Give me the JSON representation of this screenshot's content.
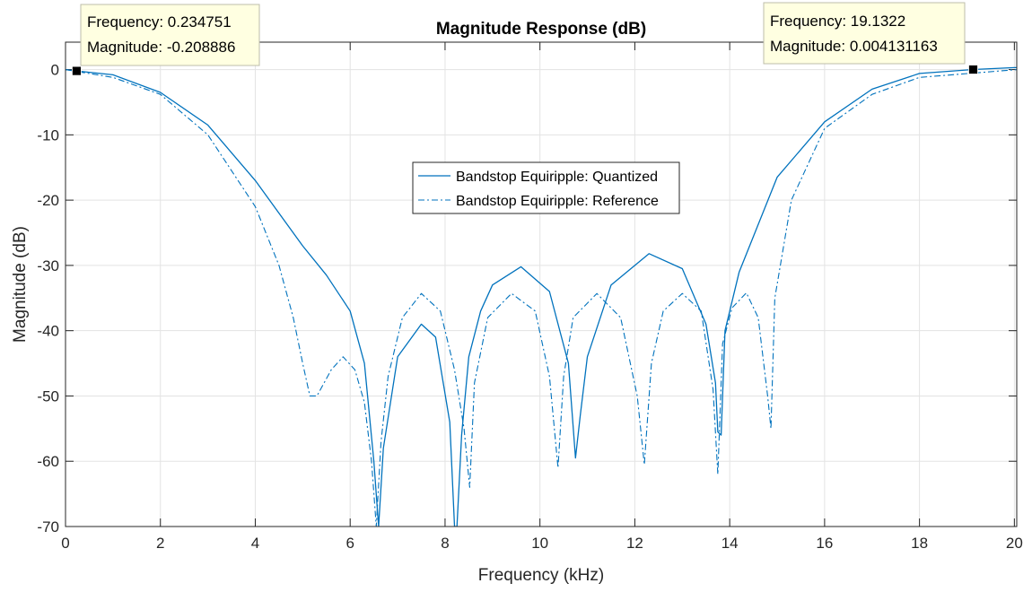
{
  "chart_data": {
    "type": "line",
    "title": "Magnitude Response (dB)",
    "xlabel": "Frequency (kHz)",
    "ylabel": "Magnitude (dB)",
    "xlim": [
      0,
      20.05
    ],
    "ylim": [
      -70,
      4.2
    ],
    "xticks": [
      0,
      2,
      4,
      6,
      8,
      10,
      12,
      14,
      16,
      18,
      20
    ],
    "yticks": [
      0,
      -10,
      -20,
      -30,
      -40,
      -50,
      -60,
      -70
    ],
    "xtick_labels": [
      "0",
      "2",
      "4",
      "6",
      "8",
      "10",
      "12",
      "14",
      "16",
      "18",
      "20"
    ],
    "ytick_labels": [
      "0",
      "-10",
      "-20",
      "-30",
      "-40",
      "-50",
      "-60",
      "-70"
    ],
    "grid": true,
    "legend_position": "center",
    "series": [
      {
        "name": "Bandstop Equiripple: Quantized",
        "style": "solid",
        "color": "#0072BD",
        "x": [
          0,
          0.235,
          1,
          2,
          3,
          4,
          5,
          5.5,
          6,
          6.3,
          6.5,
          6.6,
          6.7,
          7,
          7.5,
          7.8,
          8.1,
          8.2,
          8.25,
          8.35,
          8.5,
          8.75,
          9,
          9.6,
          10.2,
          10.6,
          10.75,
          10.85,
          11,
          11.5,
          12.3,
          13,
          13.5,
          13.7,
          13.75,
          13.82,
          13.9,
          14.2,
          15,
          16,
          17,
          18,
          19.13,
          20,
          20.05
        ],
        "y": [
          0,
          -0.21,
          -0.8,
          -3.5,
          -8.5,
          -17,
          -27,
          -31.5,
          -37,
          -45,
          -60,
          -70,
          -58,
          -44,
          -39,
          -41,
          -54,
          -70,
          -70,
          -56,
          -44,
          -37,
          -33,
          -30.2,
          -34,
          -45,
          -59.5,
          -53,
          -44,
          -33,
          -28.2,
          -30.5,
          -39,
          -48,
          -55.5,
          -56,
          -40,
          -31,
          -16.5,
          -8,
          -3,
          -0.6,
          0.004,
          0.3,
          0.3
        ]
      },
      {
        "name": "Bandstop Equiripple: Reference",
        "style": "dashdot",
        "color": "#0072BD",
        "x": [
          0,
          1,
          2,
          3,
          4,
          4.5,
          4.8,
          5,
          5.15,
          5.3,
          5.6,
          5.85,
          6.1,
          6.3,
          6.45,
          6.55,
          6.65,
          6.8,
          7.1,
          7.5,
          7.9,
          8.2,
          8.4,
          8.52,
          8.62,
          8.9,
          9.4,
          9.9,
          10.2,
          10.38,
          10.5,
          10.7,
          11.2,
          11.7,
          12.05,
          12.2,
          12.35,
          12.6,
          13,
          13.4,
          13.65,
          13.75,
          13.85,
          14.05,
          14.35,
          14.6,
          14.8,
          14.87,
          14.95,
          15.3,
          16,
          17,
          18,
          20.05
        ],
        "y": [
          0,
          -1.2,
          -3.8,
          -10,
          -21,
          -30,
          -38,
          -45,
          -50,
          -50,
          -46,
          -44,
          -46,
          -51,
          -60,
          -70,
          -57,
          -47,
          -38,
          -34.3,
          -37,
          -46,
          -55,
          -64,
          -48,
          -38,
          -34.3,
          -37,
          -47,
          -61,
          -47,
          -38,
          -34.3,
          -38,
          -50,
          -60.5,
          -45,
          -37,
          -34.3,
          -37,
          -49,
          -62,
          -42,
          -36.5,
          -34.2,
          -38,
          -50,
          -55,
          -35,
          -20,
          -9,
          -3.8,
          -1.2,
          0
        ]
      }
    ],
    "annotations": [
      {
        "frequency_label": "Frequency: 0.234751",
        "magnitude_label": "Magnitude: -0.208886",
        "x": 0.234751,
        "y": -0.208886
      },
      {
        "frequency_label": "Frequency: 19.1322",
        "magnitude_label": "Magnitude: 0.004131163",
        "x": 19.1322,
        "y": 0.004131163
      }
    ]
  }
}
